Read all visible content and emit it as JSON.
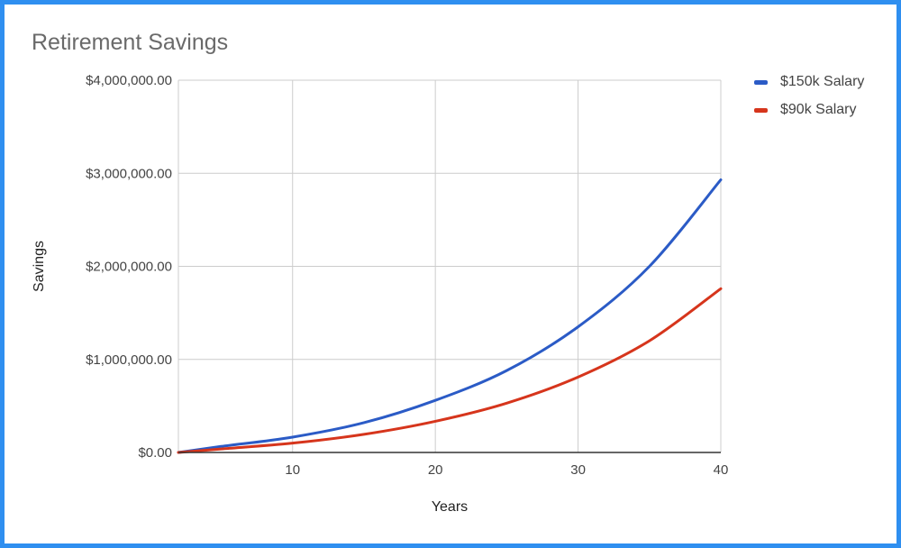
{
  "colors": {
    "frame_background": "#2f8ff0",
    "series_150k": "#2b5bc6",
    "series_90k": "#d6351c",
    "grid": "#cccccc",
    "axis_text": "#444444"
  },
  "chart_data": {
    "type": "line",
    "title": "Retirement Savings",
    "xlabel": "Years",
    "ylabel": "Savings",
    "xlim": [
      2,
      40
    ],
    "ylim": [
      0,
      4000000
    ],
    "x_ticks": [
      10,
      20,
      30,
      40
    ],
    "y_ticks": [
      0,
      1000000,
      2000000,
      3000000,
      4000000
    ],
    "y_tick_labels": [
      "$0.00",
      "$1,000,000.00",
      "$2,000,000.00",
      "$3,000,000.00",
      "$4,000,000.00"
    ],
    "grid": true,
    "legend_position": "right",
    "x": [
      2,
      5,
      10,
      15,
      20,
      25,
      30,
      35,
      40
    ],
    "series": [
      {
        "name": "$150k Salary",
        "color": "#2b5bc6",
        "values": [
          0,
          65000,
          165000,
          320000,
          560000,
          880000,
          1350000,
          2000000,
          2930000
        ]
      },
      {
        "name": "$90k Salary",
        "color": "#d6351c",
        "values": [
          0,
          38000,
          100000,
          195000,
          335000,
          530000,
          810000,
          1200000,
          1760000
        ]
      }
    ]
  }
}
